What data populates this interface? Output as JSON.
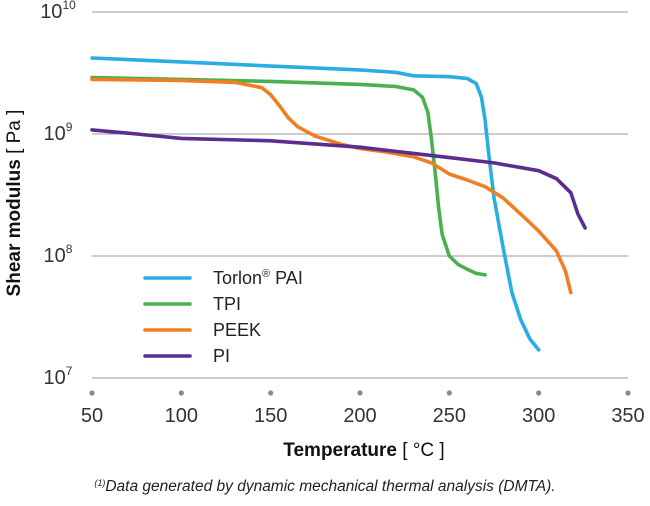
{
  "chart_data": {
    "type": "line",
    "title": "",
    "xlabel_bold": "Temperature",
    "xlabel_unit": "[ °C ]",
    "ylabel_bold": "Shear modulus",
    "ylabel_unit": "[ Pa ]",
    "x_scale": "linear",
    "y_scale": "log",
    "xlim": [
      50,
      350
    ],
    "ylim": [
      10000000,
      10000000000
    ],
    "x_ticks": [
      50,
      100,
      150,
      200,
      250,
      300,
      350
    ],
    "y_ticks": [
      {
        "value": 10000000,
        "base": "10",
        "exp": "7"
      },
      {
        "value": 100000000,
        "base": "10",
        "exp": "8"
      },
      {
        "value": 1000000000,
        "base": "10",
        "exp": "9"
      },
      {
        "value": 10000000000,
        "base": "10",
        "exp": "10"
      }
    ],
    "grid": "horizontal",
    "legend_position": "lower-left",
    "series": [
      {
        "name": "Torlon® PAI",
        "legend_main": "Torlon",
        "legend_sup": "®",
        "legend_rest": " PAI",
        "color": "#29aee3",
        "points": [
          [
            50,
            4200000000
          ],
          [
            100,
            3900000000
          ],
          [
            150,
            3600000000
          ],
          [
            200,
            3350000000
          ],
          [
            220,
            3200000000
          ],
          [
            230,
            3000000000
          ],
          [
            250,
            2950000000
          ],
          [
            260,
            2850000000
          ],
          [
            265,
            2600000000
          ],
          [
            268,
            2000000000
          ],
          [
            270,
            1300000000
          ],
          [
            272,
            700000000
          ],
          [
            275,
            300000000
          ],
          [
            280,
            120000000
          ],
          [
            285,
            50000000
          ],
          [
            290,
            30000000
          ],
          [
            295,
            21000000
          ],
          [
            300,
            17000000
          ]
        ]
      },
      {
        "name": "TPI",
        "legend_main": "TPI",
        "legend_sup": "",
        "legend_rest": "",
        "color": "#4caf50",
        "points": [
          [
            50,
            2900000000
          ],
          [
            100,
            2800000000
          ],
          [
            150,
            2700000000
          ],
          [
            200,
            2550000000
          ],
          [
            220,
            2450000000
          ],
          [
            230,
            2300000000
          ],
          [
            235,
            2000000000
          ],
          [
            238,
            1500000000
          ],
          [
            240,
            900000000
          ],
          [
            242,
            500000000
          ],
          [
            244,
            250000000
          ],
          [
            246,
            150000000
          ],
          [
            250,
            100000000
          ],
          [
            255,
            85000000
          ],
          [
            260,
            78000000
          ],
          [
            265,
            72000000
          ],
          [
            270,
            70000000
          ]
        ]
      },
      {
        "name": "PEEK",
        "legend_main": "PEEK",
        "legend_sup": "",
        "legend_rest": "",
        "color": "#f07f22",
        "points": [
          [
            50,
            2800000000
          ],
          [
            100,
            2750000000
          ],
          [
            130,
            2650000000
          ],
          [
            145,
            2400000000
          ],
          [
            150,
            2100000000
          ],
          [
            155,
            1700000000
          ],
          [
            160,
            1350000000
          ],
          [
            165,
            1150000000
          ],
          [
            175,
            960000000
          ],
          [
            190,
            820000000
          ],
          [
            200,
            760000000
          ],
          [
            215,
            710000000
          ],
          [
            230,
            650000000
          ],
          [
            240,
            580000000
          ],
          [
            250,
            470000000
          ],
          [
            260,
            420000000
          ],
          [
            270,
            370000000
          ],
          [
            280,
            300000000
          ],
          [
            290,
            220000000
          ],
          [
            300,
            160000000
          ],
          [
            310,
            110000000
          ],
          [
            315,
            75000000
          ],
          [
            318,
            50000000
          ]
        ]
      },
      {
        "name": "PI",
        "legend_main": "PI",
        "legend_sup": "",
        "legend_rest": "",
        "color": "#5b2d8e",
        "points": [
          [
            50,
            1080000000
          ],
          [
            75,
            1000000000
          ],
          [
            100,
            920000000
          ],
          [
            150,
            880000000
          ],
          [
            200,
            780000000
          ],
          [
            250,
            640000000
          ],
          [
            275,
            580000000
          ],
          [
            300,
            500000000
          ],
          [
            310,
            430000000
          ],
          [
            318,
            330000000
          ],
          [
            322,
            220000000
          ],
          [
            326,
            170000000
          ]
        ]
      }
    ]
  },
  "footnote": {
    "superscript": "(1)",
    "text": "Data generated by dynamic mechanical thermal analysis (DMTA)."
  }
}
